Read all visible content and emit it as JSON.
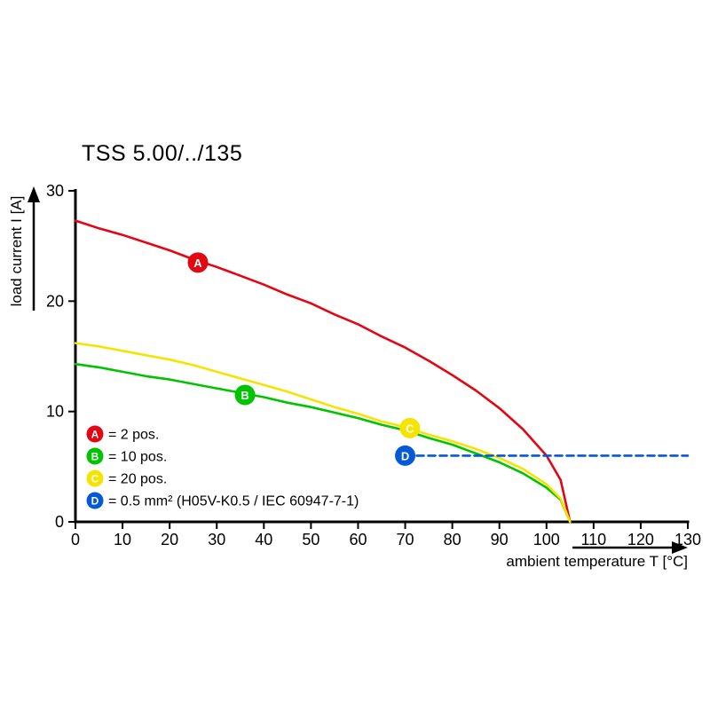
{
  "chart_data": {
    "type": "line",
    "title": "TSS 5.00/../135",
    "xlabel": "ambient temperature T [°C]",
    "ylabel": "load current I [A]",
    "xlim": [
      0,
      130
    ],
    "ylim": [
      0,
      30
    ],
    "x_ticks": [
      0,
      10,
      20,
      30,
      40,
      50,
      60,
      70,
      80,
      90,
      100,
      110,
      120,
      130
    ],
    "y_ticks": [
      0,
      10,
      20,
      30
    ],
    "grid": false,
    "legend_position": "inside-bottom-left",
    "series": [
      {
        "name": "A",
        "label": "= 2 pos.",
        "color": "#e30613",
        "style": "solid",
        "marker_at": [
          26,
          23.5
        ],
        "points": [
          [
            0,
            27.3
          ],
          [
            5,
            26.6
          ],
          [
            10,
            26.0
          ],
          [
            15,
            25.3
          ],
          [
            20,
            24.6
          ],
          [
            25,
            23.8
          ],
          [
            30,
            23.1
          ],
          [
            35,
            22.3
          ],
          [
            40,
            21.5
          ],
          [
            45,
            20.6
          ],
          [
            50,
            19.8
          ],
          [
            55,
            18.8
          ],
          [
            60,
            17.9
          ],
          [
            65,
            16.8
          ],
          [
            70,
            15.8
          ],
          [
            75,
            14.6
          ],
          [
            80,
            13.3
          ],
          [
            85,
            11.9
          ],
          [
            90,
            10.3
          ],
          [
            95,
            8.4
          ],
          [
            100,
            6.0
          ],
          [
            103,
            3.8
          ],
          [
            105,
            0
          ]
        ]
      },
      {
        "name": "B",
        "label": "= 10 pos.",
        "color": "#00c400",
        "style": "solid",
        "marker_at": [
          36,
          11.5
        ],
        "points": [
          [
            0,
            14.3
          ],
          [
            5,
            14.0
          ],
          [
            10,
            13.6
          ],
          [
            15,
            13.2
          ],
          [
            20,
            12.9
          ],
          [
            25,
            12.5
          ],
          [
            30,
            12.1
          ],
          [
            35,
            11.7
          ],
          [
            40,
            11.3
          ],
          [
            45,
            10.8
          ],
          [
            50,
            10.4
          ],
          [
            55,
            9.9
          ],
          [
            60,
            9.4
          ],
          [
            65,
            8.8
          ],
          [
            70,
            8.3
          ],
          [
            75,
            7.6
          ],
          [
            80,
            7.0
          ],
          [
            85,
            6.2
          ],
          [
            90,
            5.4
          ],
          [
            95,
            4.4
          ],
          [
            100,
            3.1
          ],
          [
            103,
            2.0
          ],
          [
            105,
            0
          ]
        ]
      },
      {
        "name": "C",
        "label": "= 20 pos.",
        "color": "#f5e400",
        "style": "solid",
        "marker_at": [
          71,
          8.5
        ],
        "points": [
          [
            0,
            16.2
          ],
          [
            5,
            15.9
          ],
          [
            10,
            15.5
          ],
          [
            15,
            15.1
          ],
          [
            20,
            14.7
          ],
          [
            25,
            14.2
          ],
          [
            30,
            13.6
          ],
          [
            35,
            13.0
          ],
          [
            40,
            12.4
          ],
          [
            45,
            11.8
          ],
          [
            50,
            11.1
          ],
          [
            55,
            10.4
          ],
          [
            60,
            9.8
          ],
          [
            65,
            9.1
          ],
          [
            70,
            8.6
          ],
          [
            75,
            7.9
          ],
          [
            80,
            7.3
          ],
          [
            85,
            6.6
          ],
          [
            90,
            5.8
          ],
          [
            95,
            4.8
          ],
          [
            100,
            3.4
          ],
          [
            103,
            2.1
          ],
          [
            105,
            0
          ]
        ]
      },
      {
        "name": "D",
        "label": "= 0.5 mm² (H05V-K0.5 / IEC 60947-7-1)",
        "color": "#0558d6",
        "style": "dashed",
        "marker_at": [
          70,
          6
        ],
        "points": [
          [
            70,
            6
          ],
          [
            130,
            6
          ]
        ]
      }
    ]
  }
}
